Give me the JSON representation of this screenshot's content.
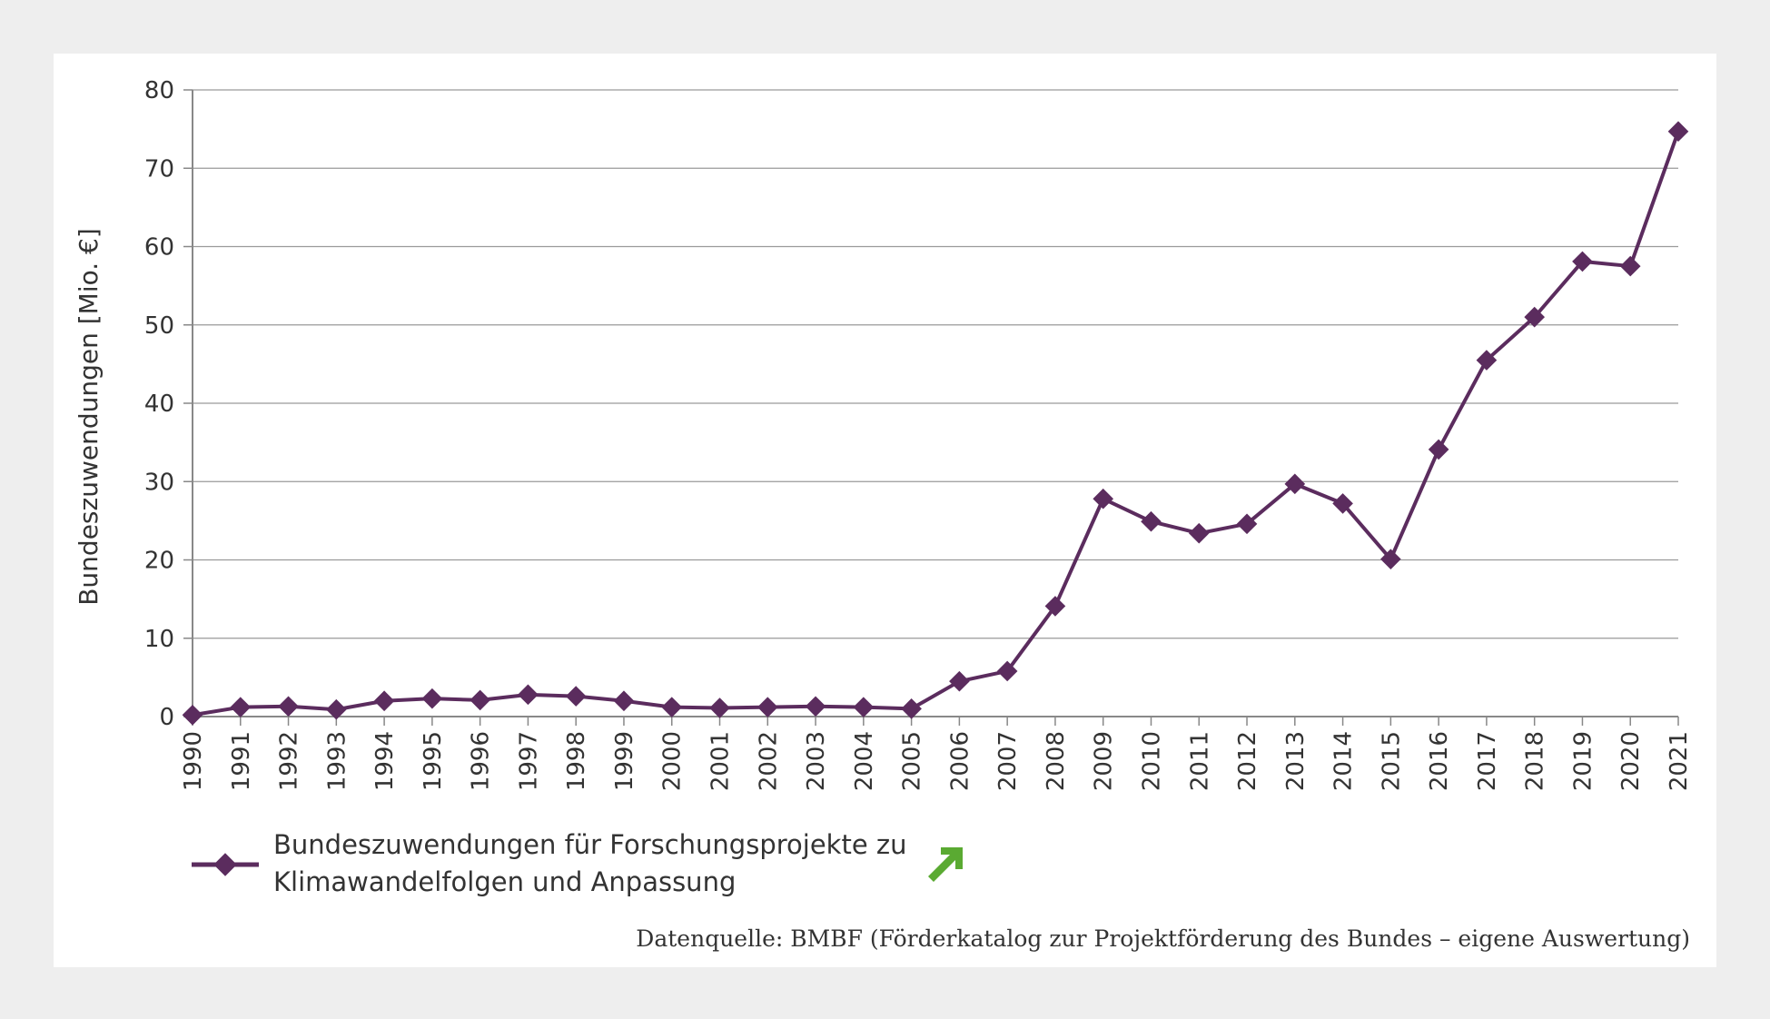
{
  "chart_data": {
    "type": "line",
    "title": "",
    "xlabel": "",
    "ylabel": "Bundeszuwendungen [Mio. €]",
    "ylim": [
      0,
      80
    ],
    "yticks": [
      "0",
      "10",
      "20",
      "30",
      "40",
      "50",
      "60",
      "70",
      "80"
    ],
    "grid": true,
    "categories": [
      "1990",
      "1991",
      "1992",
      "1993",
      "1994",
      "1995",
      "1996",
      "1997",
      "1998",
      "1999",
      "2000",
      "2001",
      "2002",
      "2003",
      "2004",
      "2005",
      "2006",
      "2007",
      "2008",
      "2009",
      "2010",
      "2011",
      "2012",
      "2013",
      "2014",
      "2015",
      "2016",
      "2017",
      "2018",
      "2019",
      "2020",
      "2021"
    ],
    "series": [
      {
        "name": "Bundeszuwendungen für Forschungsprojekte zu Klimawandelfolgen und Anpassung",
        "legend_lines": [
          "Bundeszuwendungen für Forschungsprojekte zu",
          "Klimawandelfolgen und Anpassung"
        ],
        "color": "#5b2c5e",
        "marker": "diamond",
        "values": [
          0.2,
          1.2,
          1.3,
          0.9,
          2.0,
          2.3,
          2.1,
          2.8,
          2.6,
          2.0,
          1.2,
          1.1,
          1.2,
          1.3,
          1.2,
          1.0,
          4.5,
          5.8,
          14.1,
          27.8,
          24.9,
          23.4,
          24.6,
          29.7,
          27.2,
          20.1,
          34.1,
          45.5,
          51.0,
          58.1,
          57.5,
          74.7
        ]
      }
    ],
    "source": "Datenquelle: BMBF (Förderkatalog zur Projektförderung des Bundes – eigene Auswertung)",
    "indicator_icon": "green-up-right-arrow-icon",
    "indicator_color": "#5aaa32"
  }
}
